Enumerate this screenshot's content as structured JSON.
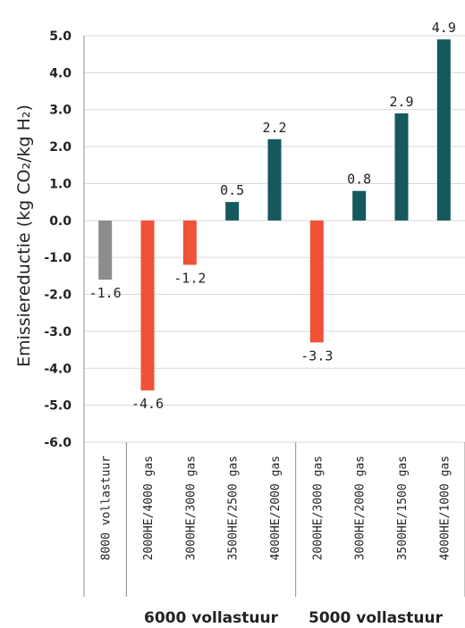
{
  "chart_data": {
    "type": "bar",
    "ylabel": "Emissiereductie (kg CO₂/kg H₂)",
    "ylim": [
      -6.0,
      5.0
    ],
    "yticks": [
      "5.0",
      "4.0",
      "3.0",
      "2.0",
      "1.0",
      "0.0",
      "-1.0",
      "-2.0",
      "-3.0",
      "-4.0",
      "-5.0",
      "-6.0"
    ],
    "grid": true,
    "categories": [
      "8000 vollastuur",
      "2000HE/4000 gas",
      "3000HE/3000 gas",
      "3500HE/2500 gas",
      "4000HE/2000 gas",
      "2000HE/3000 gas",
      "3000HE/2000 gas",
      "3500HE/1500 gas",
      "4000HE/1000 gas"
    ],
    "values": [
      -1.6,
      -4.6,
      -1.2,
      0.5,
      2.2,
      -3.3,
      0.8,
      2.9,
      4.9
    ],
    "data_labels": [
      "-1.6",
      "-4.6",
      "-1.2",
      "0.5",
      "2.2",
      "-3.3",
      "0.8",
      "2.9",
      "4.9"
    ],
    "groups": [
      {
        "label": "6000 vollastuur"
      },
      {
        "label": "5000 vollastuur"
      }
    ],
    "colors": {
      "gray": "#8c8c8c",
      "negative": "#ef5237",
      "positive": "#15585e",
      "grid": "#d9d9d9",
      "axis": "#8c8c8c"
    }
  }
}
